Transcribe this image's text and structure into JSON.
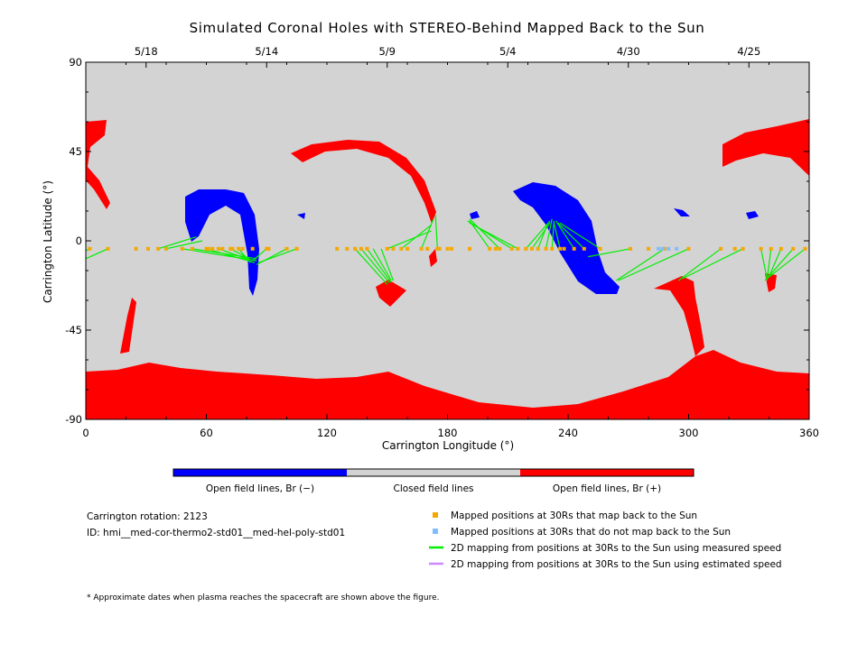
{
  "chart_data": {
    "type": "scatter",
    "title": "Simulated Coronal Holes with STEREO-Behind Mapped Back to the Sun",
    "xlabel": "Carrington Longitude (°)",
    "ylabel": "Carrington Latitude (°)",
    "xlim": [
      0,
      360
    ],
    "ylim": [
      -90,
      90
    ],
    "x_ticks": [
      0,
      60,
      120,
      180,
      240,
      300,
      360
    ],
    "y_ticks": [
      90,
      45,
      0,
      -45,
      -90
    ],
    "top_axis_dates": [
      {
        "label": "5/18",
        "lon": 30
      },
      {
        "label": "5/14",
        "lon": 90
      },
      {
        "label": "5/9",
        "lon": 150
      },
      {
        "label": "5/4",
        "lon": 210
      },
      {
        "label": "4/30",
        "lon": 270
      },
      {
        "label": "4/25",
        "lon": 330
      }
    ],
    "colorbar": {
      "colors": [
        "#0000ff",
        "#d3d3d3",
        "#ff0000"
      ],
      "labels": [
        "Open field lines, Br (−)",
        "Closed field lines",
        "Open field lines, Br (+)"
      ]
    },
    "colors": {
      "closed": "#d3d3d3",
      "neg": "#0000ff",
      "pos": "#ff0000",
      "mapped": "#f5a800",
      "unmapped": "#7fbfff",
      "measured": "#00ee00",
      "estimated": "#cc88ff"
    },
    "regions": [
      {
        "polarity": "positive",
        "name": "south polar cap",
        "lon": [
          0,
          360
        ],
        "lat": [
          -90,
          -65
        ]
      },
      {
        "polarity": "positive",
        "name": "north hole near 0-25",
        "lon": [
          0,
          25
        ],
        "lat": [
          25,
          60
        ]
      },
      {
        "polarity": "positive",
        "name": "arc near 115-170",
        "lon": [
          105,
          170
        ],
        "lat": [
          18,
          50
        ]
      },
      {
        "polarity": "positive",
        "name": "hole near 150",
        "lon": [
          145,
          158
        ],
        "lat": [
          -32,
          -18
        ]
      },
      {
        "polarity": "positive",
        "name": "hole near 340",
        "lon": [
          335,
          345
        ],
        "lat": [
          -25,
          -18
        ]
      },
      {
        "polarity": "positive",
        "name": "north hole near 310-360",
        "lon": [
          315,
          360
        ],
        "lat": [
          22,
          60
        ]
      },
      {
        "polarity": "positive",
        "name": "southern lobe near 285-320",
        "lon": [
          285,
          322
        ],
        "lat": [
          -85,
          -15
        ]
      },
      {
        "polarity": "negative",
        "name": "hole near 50-85",
        "lon": [
          50,
          85
        ],
        "lat": [
          -27,
          25
        ]
      },
      {
        "polarity": "negative",
        "name": "hole near 215-260",
        "lon": [
          215,
          262
        ],
        "lat": [
          -27,
          30
        ]
      },
      {
        "polarity": "negative",
        "name": "small hole near 190",
        "lon": [
          187,
          193
        ],
        "lat": [
          10,
          14
        ]
      },
      {
        "polarity": "negative",
        "name": "small hole near 330",
        "lon": [
          328,
          334
        ],
        "lat": [
          11,
          15
        ]
      }
    ],
    "mapped_points": {
      "lat": -4,
      "lon": [
        2,
        11,
        25,
        31,
        36,
        40,
        48,
        53,
        60,
        61,
        63,
        66,
        68,
        72,
        73,
        76,
        78,
        83,
        90,
        91,
        100,
        105,
        125,
        130,
        134,
        137,
        140,
        150,
        153,
        157,
        160,
        167,
        170,
        175,
        176,
        180,
        182,
        191,
        201,
        204,
        206,
        212,
        215,
        219,
        222,
        225,
        229,
        232,
        236,
        238,
        243,
        248,
        256,
        271,
        280,
        288,
        300,
        316,
        323,
        327,
        336,
        341,
        346,
        352,
        358
      ]
    },
    "unmapped_points": {
      "lat": -4,
      "lon": [
        285,
        287,
        290,
        294
      ]
    },
    "measured_lines": [
      {
        "from": [
          2,
          -4
        ],
        "to": [
          0,
          -5
        ]
      },
      {
        "from": [
          11,
          -4
        ],
        "to": [
          0,
          -9
        ]
      },
      {
        "from": [
          36,
          -4
        ],
        "to": [
          55,
          2
        ]
      },
      {
        "from": [
          40,
          -4
        ],
        "to": [
          58,
          0
        ]
      },
      {
        "from": [
          48,
          -4
        ],
        "to": [
          85,
          -10
        ]
      },
      {
        "from": [
          53,
          -4
        ],
        "to": [
          85,
          -9
        ]
      },
      {
        "from": [
          60,
          -4
        ],
        "to": [
          84,
          -11
        ]
      },
      {
        "from": [
          66,
          -4
        ],
        "to": [
          80,
          -9
        ]
      },
      {
        "from": [
          72,
          -4
        ],
        "to": [
          83,
          -10
        ]
      },
      {
        "from": [
          76,
          -4
        ],
        "to": [
          82,
          -11
        ]
      },
      {
        "from": [
          90,
          -4
        ],
        "to": [
          83,
          -10
        ]
      },
      {
        "from": [
          100,
          -4
        ],
        "to": [
          85,
          -12
        ]
      },
      {
        "from": [
          105,
          -4
        ],
        "to": [
          86,
          -11
        ]
      },
      {
        "from": [
          134,
          -4
        ],
        "to": [
          150,
          -22
        ]
      },
      {
        "from": [
          137,
          -4
        ],
        "to": [
          151,
          -21
        ]
      },
      {
        "from": [
          140,
          -4
        ],
        "to": [
          152,
          -21
        ]
      },
      {
        "from": [
          143,
          -4
        ],
        "to": [
          152,
          -20
        ]
      },
      {
        "from": [
          147,
          -4
        ],
        "to": [
          153,
          -20
        ]
      },
      {
        "from": [
          150,
          -4
        ],
        "to": [
          172,
          5
        ]
      },
      {
        "from": [
          157,
          -4
        ],
        "to": [
          172,
          8
        ]
      },
      {
        "from": [
          167,
          -4
        ],
        "to": [
          173,
          11
        ]
      },
      {
        "from": [
          175,
          -4
        ],
        "to": [
          174,
          13
        ]
      },
      {
        "from": [
          201,
          -4
        ],
        "to": [
          191,
          10
        ]
      },
      {
        "from": [
          206,
          -4
        ],
        "to": [
          191,
          11
        ]
      },
      {
        "from": [
          212,
          -4
        ],
        "to": [
          190,
          10
        ]
      },
      {
        "from": [
          215,
          -4
        ],
        "to": [
          191,
          9
        ]
      },
      {
        "from": [
          219,
          -4
        ],
        "to": [
          231,
          10
        ]
      },
      {
        "from": [
          222,
          -4
        ],
        "to": [
          231,
          9
        ]
      },
      {
        "from": [
          225,
          -4
        ],
        "to": [
          230,
          9
        ]
      },
      {
        "from": [
          229,
          -4
        ],
        "to": [
          232,
          11
        ]
      },
      {
        "from": [
          232,
          -4
        ],
        "to": [
          233,
          10
        ]
      },
      {
        "from": [
          236,
          -4
        ],
        "to": [
          233,
          9
        ]
      },
      {
        "from": [
          243,
          -4
        ],
        "to": [
          234,
          10
        ]
      },
      {
        "from": [
          248,
          -4
        ],
        "to": [
          235,
          9
        ]
      },
      {
        "from": [
          256,
          -4
        ],
        "to": [
          236,
          9
        ]
      },
      {
        "from": [
          271,
          -4
        ],
        "to": [
          250,
          -8
        ]
      },
      {
        "from": [
          288,
          -4
        ],
        "to": [
          264,
          -20
        ]
      },
      {
        "from": [
          300,
          -4
        ],
        "to": [
          265,
          -20
        ]
      },
      {
        "from": [
          316,
          -4
        ],
        "to": [
          295,
          -20
        ]
      },
      {
        "from": [
          327,
          -4
        ],
        "to": [
          297,
          -19
        ]
      },
      {
        "from": [
          336,
          -4
        ],
        "to": [
          339,
          -19
        ]
      },
      {
        "from": [
          341,
          -4
        ],
        "to": [
          339,
          -20
        ]
      },
      {
        "from": [
          346,
          -4
        ],
        "to": [
          340,
          -18
        ]
      },
      {
        "from": [
          352,
          -4
        ],
        "to": [
          338,
          -20
        ]
      },
      {
        "from": [
          358,
          -4
        ],
        "to": [
          339,
          -19
        ]
      }
    ],
    "legend": [
      {
        "marker": "square",
        "color": "#f5a800",
        "label": "Mapped positions at 30Rs that map back to the Sun"
      },
      {
        "marker": "square",
        "color": "#7fbfff",
        "label": "Mapped positions at 30Rs that do not map back to the Sun"
      },
      {
        "marker": "line",
        "color": "#00ee00",
        "label": "2D mapping from positions at 30Rs to the Sun using measured speed"
      },
      {
        "marker": "line",
        "color": "#cc88ff",
        "label": "2D mapping from positions at 30Rs to the Sun using estimated speed"
      }
    ]
  },
  "info": {
    "rotation": "Carrington rotation: 2123",
    "id": "ID: hmi__med-cor-thermo2-std01__med-hel-poly-std01"
  },
  "footnote": "* Approximate dates when plasma reaches the spacecraft are shown above the figure."
}
